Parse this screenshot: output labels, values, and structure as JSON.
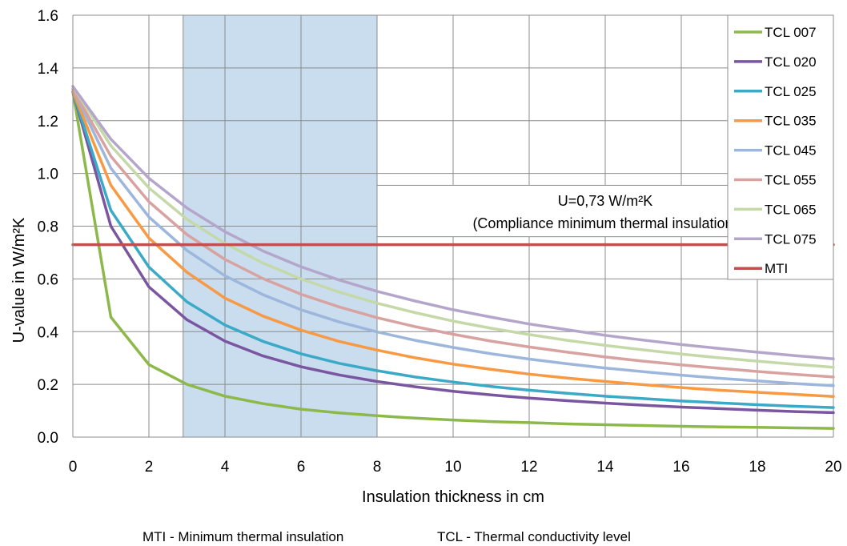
{
  "chart_data": {
    "type": "line",
    "xlabel": "Insulation thickness in cm",
    "ylabel": "U-value in W/m²K",
    "xlim": [
      0,
      20
    ],
    "ylim": [
      0,
      1.6
    ],
    "xticks": [
      "0",
      "2",
      "4",
      "6",
      "8",
      "10",
      "12",
      "14",
      "16",
      "18",
      "20"
    ],
    "yticks": [
      "0.0",
      "0.2",
      "0.4",
      "0.6",
      "0.8",
      "1.0",
      "1.2",
      "1.4",
      "1.6"
    ],
    "grid": true,
    "legend_position": "top-right",
    "x": [
      0,
      1,
      2,
      3,
      4,
      5,
      6,
      7,
      8,
      9,
      10,
      11,
      12,
      13,
      14,
      15,
      16,
      17,
      18,
      19,
      20
    ],
    "series": [
      {
        "name": "TCL 007",
        "color": "#8db94a",
        "values": [
          1.31,
          0.455,
          0.275,
          0.2,
          0.155,
          0.127,
          0.106,
          0.092,
          0.081,
          0.072,
          0.065,
          0.059,
          0.055,
          0.05,
          0.047,
          0.044,
          0.041,
          0.039,
          0.037,
          0.035,
          0.033
        ]
      },
      {
        "name": "TCL 020",
        "color": "#7b56a0",
        "values": [
          1.31,
          0.8,
          0.57,
          0.445,
          0.364,
          0.308,
          0.267,
          0.236,
          0.211,
          0.191,
          0.174,
          0.16,
          0.148,
          0.138,
          0.129,
          0.121,
          0.114,
          0.108,
          0.102,
          0.097,
          0.093
        ]
      },
      {
        "name": "TCL 025",
        "color": "#3aaac6",
        "values": [
          1.31,
          0.86,
          0.645,
          0.513,
          0.425,
          0.363,
          0.316,
          0.28,
          0.252,
          0.228,
          0.209,
          0.192,
          0.178,
          0.166,
          0.155,
          0.146,
          0.137,
          0.13,
          0.123,
          0.117,
          0.112
        ]
      },
      {
        "name": "TCL 035",
        "color": "#f79a43",
        "values": [
          1.31,
          0.955,
          0.755,
          0.625,
          0.527,
          0.459,
          0.406,
          0.363,
          0.33,
          0.301,
          0.277,
          0.257,
          0.239,
          0.224,
          0.211,
          0.199,
          0.188,
          0.178,
          0.17,
          0.162,
          0.154
        ]
      },
      {
        "name": "TCL 045",
        "color": "#9db6dc",
        "values": [
          1.32,
          1.02,
          0.835,
          0.708,
          0.612,
          0.54,
          0.483,
          0.437,
          0.399,
          0.367,
          0.34,
          0.316,
          0.296,
          0.278,
          0.262,
          0.248,
          0.235,
          0.223,
          0.213,
          0.203,
          0.195
        ]
      },
      {
        "name": "TCL 055",
        "color": "#d7a2a0",
        "values": [
          1.32,
          1.065,
          0.893,
          0.768,
          0.674,
          0.601,
          0.542,
          0.494,
          0.453,
          0.419,
          0.39,
          0.364,
          0.342,
          0.322,
          0.304,
          0.288,
          0.274,
          0.261,
          0.249,
          0.238,
          0.228
        ]
      },
      {
        "name": "TCL 065",
        "color": "#c5d9a8",
        "values": [
          1.33,
          1.105,
          0.945,
          0.826,
          0.734,
          0.66,
          0.6,
          0.55,
          0.508,
          0.472,
          0.44,
          0.413,
          0.389,
          0.367,
          0.348,
          0.331,
          0.315,
          0.301,
          0.288,
          0.276,
          0.265
        ]
      },
      {
        "name": "TCL 075",
        "color": "#b4a6cb",
        "values": [
          1.33,
          1.13,
          0.982,
          0.869,
          0.779,
          0.706,
          0.646,
          0.596,
          0.553,
          0.516,
          0.483,
          0.455,
          0.429,
          0.407,
          0.386,
          0.368,
          0.351,
          0.336,
          0.322,
          0.309,
          0.297
        ]
      },
      {
        "name": "MTI",
        "color": "#c0504d",
        "values": [
          0.73,
          0.73,
          0.73,
          0.73,
          0.73,
          0.73,
          0.73,
          0.73,
          0.73,
          0.73,
          0.73,
          0.73,
          0.73,
          0.73,
          0.73,
          0.73,
          0.73,
          0.73,
          0.73,
          0.73,
          0.73
        ]
      }
    ],
    "shaded_region": {
      "x_from": 2.9,
      "x_to": 8,
      "color": "#c9ddef"
    },
    "annotation": {
      "lines": [
        "U=0,73 W/m²K",
        "(Compliance minimum thermal insulation)"
      ],
      "x_from": 8,
      "x_to": 20,
      "y_top": 0.955,
      "y_bottom": 0.76
    }
  },
  "footnotes": {
    "mti": "MTI - Minimum thermal insulation",
    "tcl": "TCL - Thermal conductivity level"
  }
}
